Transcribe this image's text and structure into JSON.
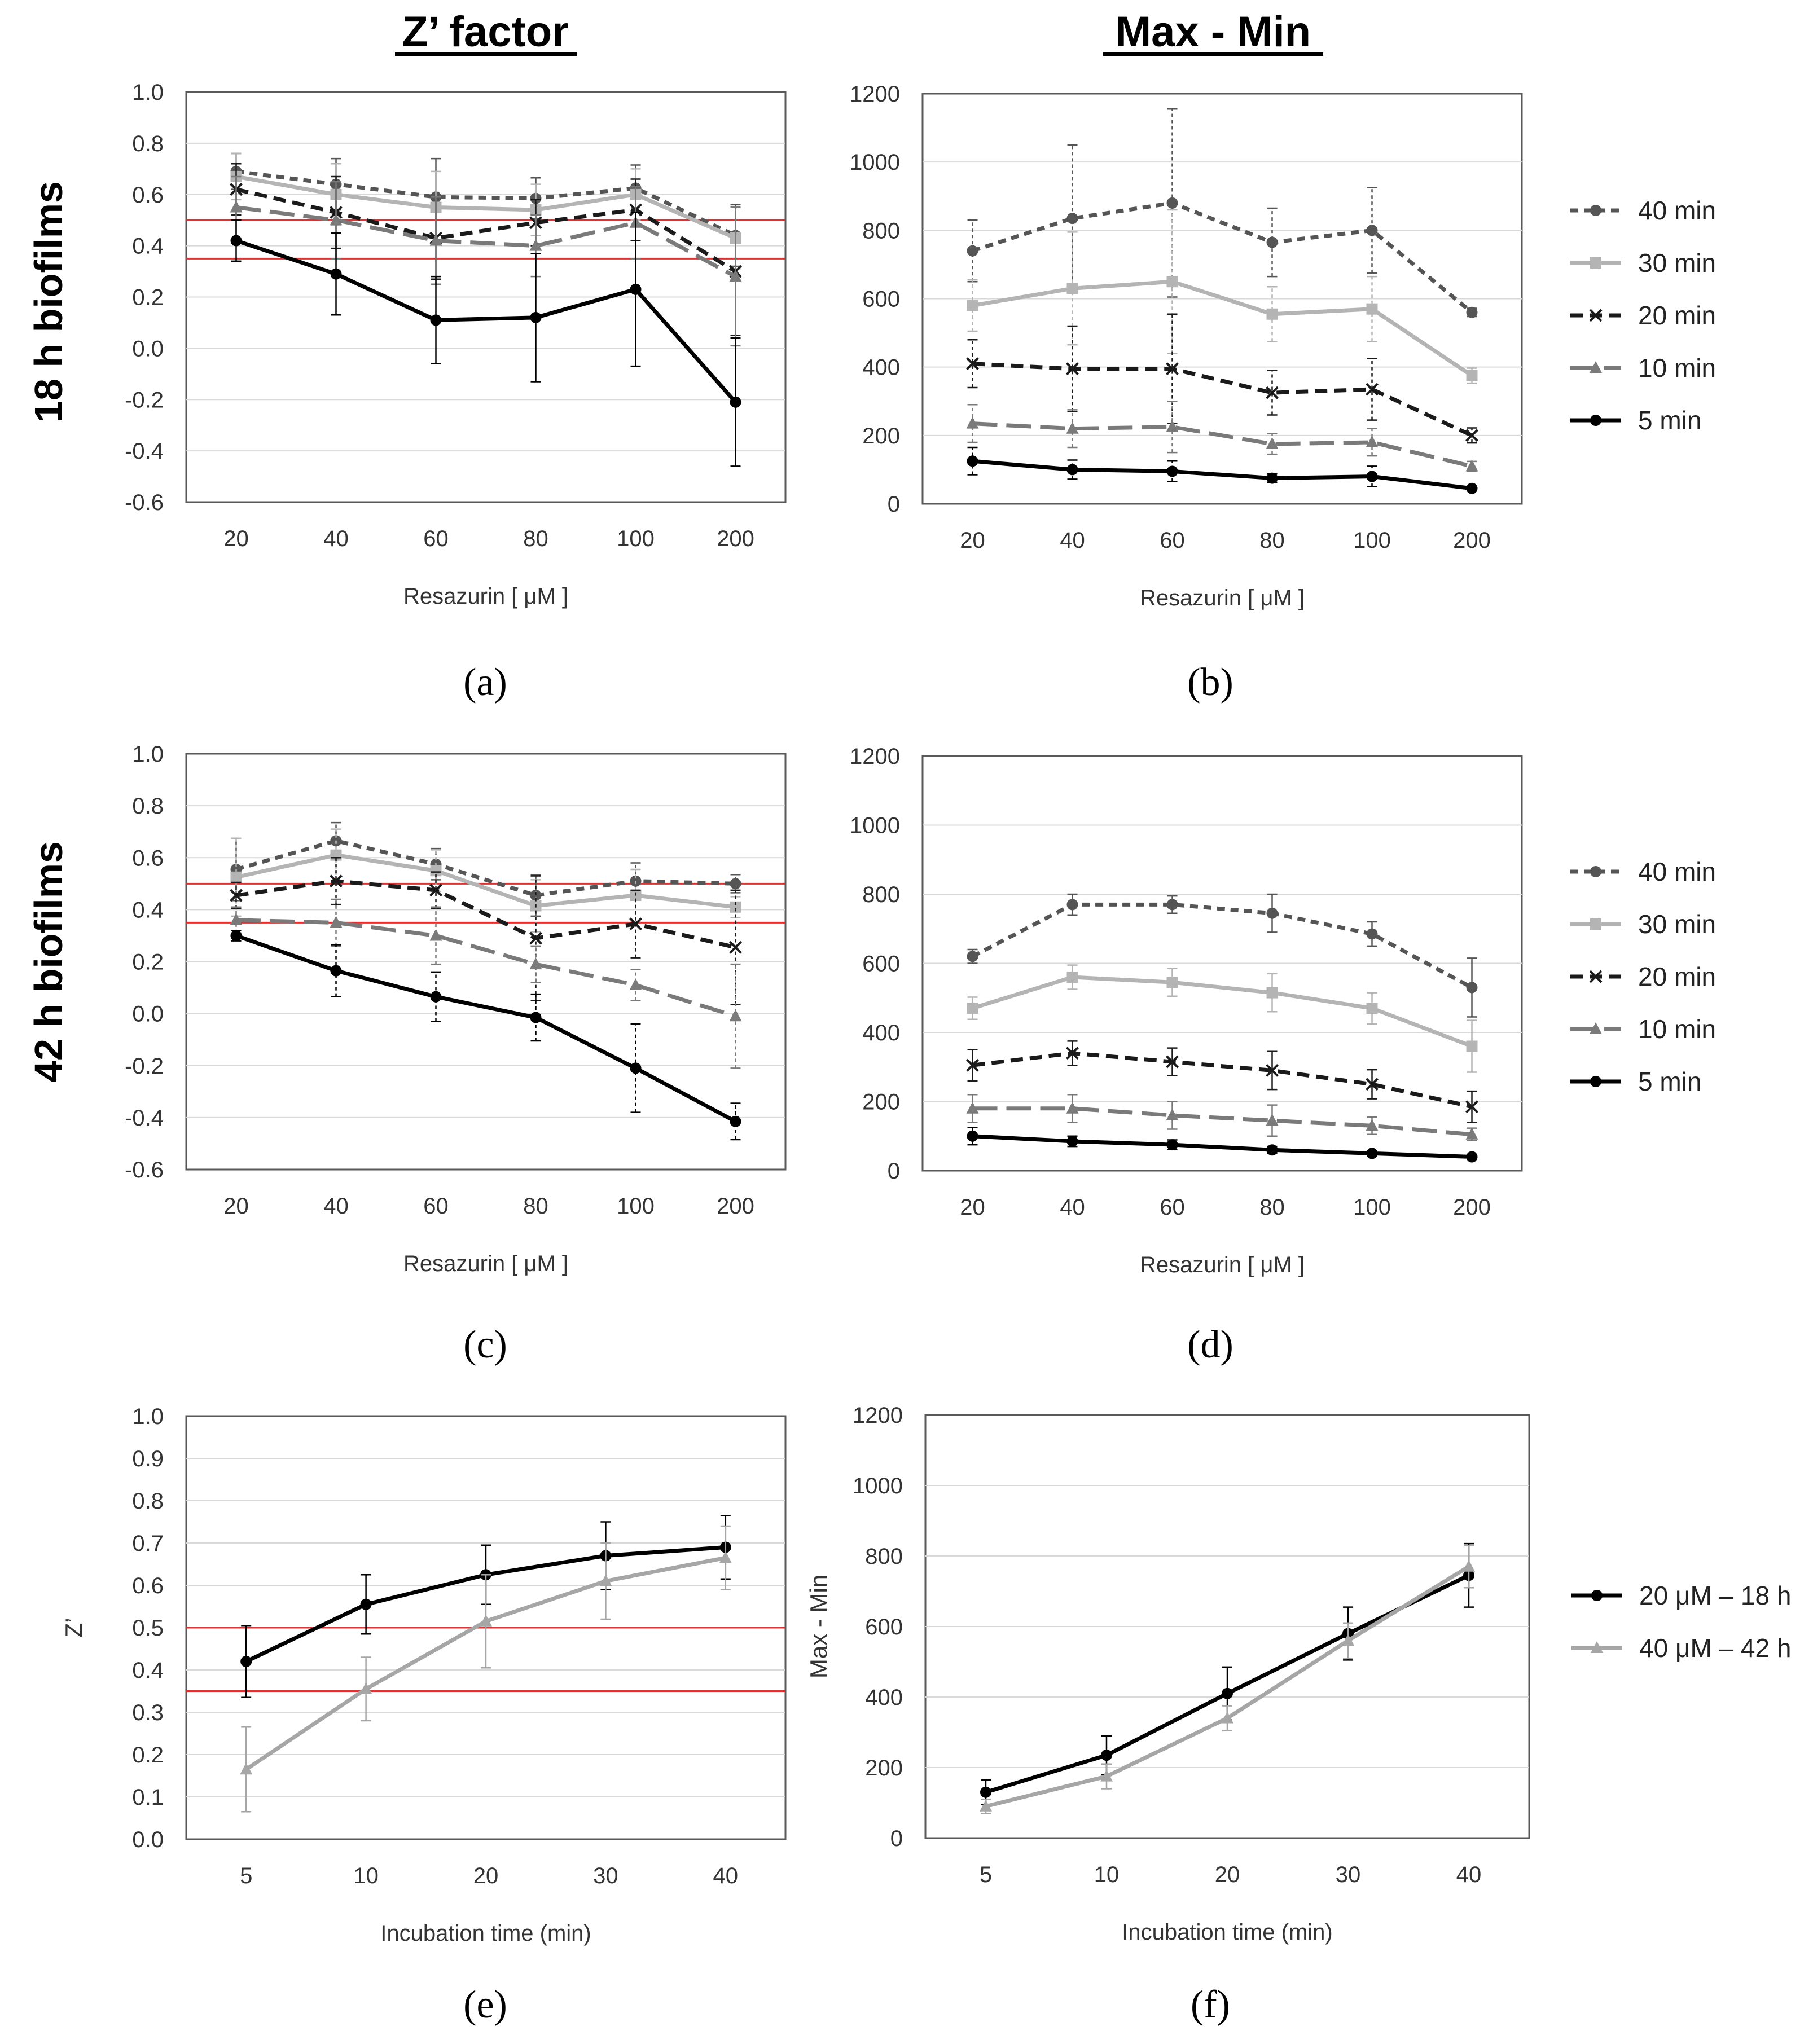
{
  "header": {
    "col_left_title": "Z’ factor",
    "col_right_title": "Max - Min",
    "row1_label": "18 h biofilms",
    "row2_label": "42 h biofilms"
  },
  "captions": [
    "(a)",
    "(b)",
    "(c)",
    "(d)",
    "(e)",
    "(f)"
  ],
  "legend_resazurin": [
    "40 min",
    "30 min",
    "20 min",
    "10 min",
    "5 min"
  ],
  "legend_time": [
    "20 μM – 18 h",
    "40 μM – 42 h"
  ],
  "colors": {
    "s40": "#555555",
    "s30": "#b4b4b4",
    "s20": "#1a1a1a",
    "s10": "#7a7a7a",
    "s5": "#000000",
    "threshold": "#e03030",
    "g18": "#000000",
    "g42": "#a6a6a6"
  },
  "chart_data": [
    {
      "id": "a",
      "type": "line",
      "title": "",
      "xlabel": "Resazurin [ μM ]",
      "ylabel": "",
      "categories": [
        "20",
        "40",
        "60",
        "80",
        "100",
        "200"
      ],
      "ylim": [
        -0.6,
        1.0
      ],
      "yticks": [
        "1.0",
        "0.8",
        "0.6",
        "0.4",
        "0.2",
        "0.0",
        "-0.2",
        "-0.4",
        "-0.6"
      ],
      "reference_lines": [
        0.5,
        0.35
      ],
      "series": [
        {
          "name": "40 min",
          "values": [
            0.69,
            0.64,
            0.59,
            0.585,
            0.625,
            0.44
          ],
          "errors": [
            0.07,
            0.1,
            0.15,
            0.08,
            0.09,
            0.12
          ]
        },
        {
          "name": "30 min",
          "values": [
            0.67,
            0.6,
            0.55,
            0.54,
            0.6,
            0.43
          ],
          "errors": [
            0.09,
            0.12,
            0.14,
            0.1,
            0.1,
            0.12
          ]
        },
        {
          "name": "20 min",
          "values": [
            0.62,
            0.53,
            0.43,
            0.49,
            0.54,
            0.3
          ],
          "errors": [
            0.1,
            0.14,
            0.16,
            0.09,
            0.12,
            0.25
          ]
        },
        {
          "name": "10 min",
          "values": [
            0.55,
            0.5,
            0.42,
            0.4,
            0.49,
            0.28
          ],
          "errors": [
            0.12,
            0.15,
            0.17,
            0.12,
            0.14,
            0.27
          ]
        },
        {
          "name": "5 min",
          "values": [
            0.42,
            0.29,
            0.11,
            0.12,
            0.23,
            -0.21
          ],
          "errors": [
            0.08,
            0.16,
            0.17,
            0.25,
            0.3,
            0.25
          ]
        }
      ]
    },
    {
      "id": "b",
      "type": "line",
      "title": "",
      "xlabel": "Resazurin [ μM ]",
      "ylabel": "",
      "categories": [
        "20",
        "40",
        "60",
        "80",
        "100",
        "200"
      ],
      "ylim": [
        0,
        1200
      ],
      "yticks": [
        "1200",
        "1000",
        "800",
        "600",
        "400",
        "200",
        "0"
      ],
      "series": [
        {
          "name": "40 min",
          "values": [
            740,
            835,
            880,
            765,
            800,
            560
          ],
          "errors": [
            90,
            215,
            275,
            100,
            125,
            12
          ]
        },
        {
          "name": "30 min",
          "values": [
            580,
            630,
            650,
            555,
            570,
            375
          ],
          "errors": [
            75,
            165,
            210,
            80,
            95,
            22
          ]
        },
        {
          "name": "20 min",
          "values": [
            410,
            395,
            395,
            325,
            335,
            200
          ],
          "errors": [
            70,
            125,
            160,
            65,
            90,
            22
          ]
        },
        {
          "name": "10 min",
          "values": [
            235,
            220,
            225,
            175,
            180,
            110
          ],
          "errors": [
            55,
            55,
            75,
            30,
            40,
            14
          ]
        },
        {
          "name": "5 min",
          "values": [
            125,
            100,
            95,
            75,
            80,
            45
          ],
          "errors": [
            40,
            28,
            30,
            12,
            30,
            5
          ]
        }
      ]
    },
    {
      "id": "c",
      "type": "line",
      "title": "",
      "xlabel": "Resazurin [ μM ]",
      "ylabel": "",
      "categories": [
        "20",
        "40",
        "60",
        "80",
        "100",
        "200"
      ],
      "ylim": [
        -0.6,
        1.0
      ],
      "yticks": [
        "1.0",
        "0.8",
        "0.6",
        "0.4",
        "0.2",
        "0.0",
        "-0.2",
        "-0.4",
        "-0.6"
      ],
      "reference_lines": [
        0.5,
        0.35
      ],
      "series": [
        {
          "name": "40 min",
          "values": [
            0.555,
            0.665,
            0.575,
            0.455,
            0.51,
            0.5
          ],
          "errors": [
            0.12,
            0.07,
            0.06,
            0.08,
            0.07,
            0.035
          ]
        },
        {
          "name": "30 min",
          "values": [
            0.525,
            0.61,
            0.55,
            0.415,
            0.455,
            0.41
          ],
          "errors": [
            0.15,
            0.1,
            0.08,
            0.1,
            0.1,
            0.04
          ]
        },
        {
          "name": "20 min",
          "values": [
            0.455,
            0.51,
            0.475,
            0.29,
            0.345,
            0.255
          ],
          "errors": [
            0.05,
            0.09,
            0.07,
            0.24,
            0.13,
            0.22
          ]
        },
        {
          "name": "10 min",
          "values": [
            0.36,
            0.35,
            0.3,
            0.19,
            0.11,
            -0.01
          ],
          "errors": [
            0.05,
            0.09,
            0.11,
            0.07,
            0.06,
            0.2
          ]
        },
        {
          "name": "5 min",
          "values": [
            0.3,
            0.165,
            0.065,
            -0.015,
            -0.21,
            -0.415
          ],
          "errors": [
            0.02,
            0.1,
            0.095,
            0.09,
            0.17,
            0.07
          ]
        }
      ]
    },
    {
      "id": "d",
      "type": "line",
      "title": "",
      "xlabel": "Resazurin [ μM ]",
      "ylabel": "",
      "categories": [
        "20",
        "40",
        "60",
        "80",
        "100",
        "200"
      ],
      "ylim": [
        0,
        1200
      ],
      "yticks": [
        "1200",
        "1000",
        "800",
        "600",
        "400",
        "200",
        "0"
      ],
      "series": [
        {
          "name": "40 min",
          "values": [
            620,
            770,
            770,
            745,
            685,
            530
          ],
          "errors": [
            20,
            30,
            25,
            55,
            35,
            85
          ]
        },
        {
          "name": "30 min",
          "values": [
            470,
            560,
            545,
            515,
            470,
            360
          ],
          "errors": [
            32,
            35,
            40,
            55,
            45,
            75
          ]
        },
        {
          "name": "20 min",
          "values": [
            305,
            340,
            315,
            290,
            250,
            185
          ],
          "errors": [
            45,
            35,
            40,
            55,
            42,
            45
          ]
        },
        {
          "name": "10 min",
          "values": [
            180,
            180,
            160,
            145,
            130,
            105
          ],
          "errors": [
            40,
            40,
            40,
            45,
            25,
            18
          ]
        },
        {
          "name": "5 min",
          "values": [
            100,
            85,
            75,
            60,
            50,
            40
          ],
          "errors": [
            25,
            15,
            14,
            10,
            8,
            6
          ]
        }
      ]
    },
    {
      "id": "e",
      "type": "line",
      "title": "",
      "xlabel": "Incubation time (min)",
      "ylabel": "Z’",
      "categories": [
        "5",
        "10",
        "20",
        "30",
        "40"
      ],
      "ylim": [
        0,
        1.0
      ],
      "yticks": [
        "1.0",
        "0.9",
        "0.8",
        "0.7",
        "0.6",
        "0.5",
        "0.4",
        "0.3",
        "0.2",
        "0.1",
        "0.0"
      ],
      "reference_lines": [
        0.5,
        0.35
      ],
      "series": [
        {
          "name": "20 μM – 18 h",
          "values": [
            0.42,
            0.555,
            0.625,
            0.67,
            0.69
          ],
          "errors": [
            0.085,
            0.07,
            0.07,
            0.08,
            0.075
          ]
        },
        {
          "name": "40 μM – 42 h",
          "values": [
            0.165,
            0.355,
            0.515,
            0.61,
            0.665
          ],
          "errors": [
            0.1,
            0.075,
            0.11,
            0.09,
            0.075
          ]
        }
      ]
    },
    {
      "id": "f",
      "type": "line",
      "title": "",
      "xlabel": "Incubation time (min)",
      "ylabel": "Max - Min",
      "categories": [
        "5",
        "10",
        "20",
        "30",
        "40"
      ],
      "ylim": [
        0,
        1200
      ],
      "yticks": [
        "1200",
        "1000",
        "800",
        "600",
        "400",
        "200",
        "0"
      ],
      "series": [
        {
          "name": "20 μM – 18 h",
          "values": [
            130,
            235,
            410,
            580,
            745
          ],
          "errors": [
            35,
            55,
            75,
            75,
            90
          ]
        },
        {
          "name": "40 μM – 42 h",
          "values": [
            90,
            175,
            340,
            560,
            770
          ],
          "errors": [
            20,
            35,
            35,
            50,
            60
          ]
        }
      ]
    }
  ]
}
